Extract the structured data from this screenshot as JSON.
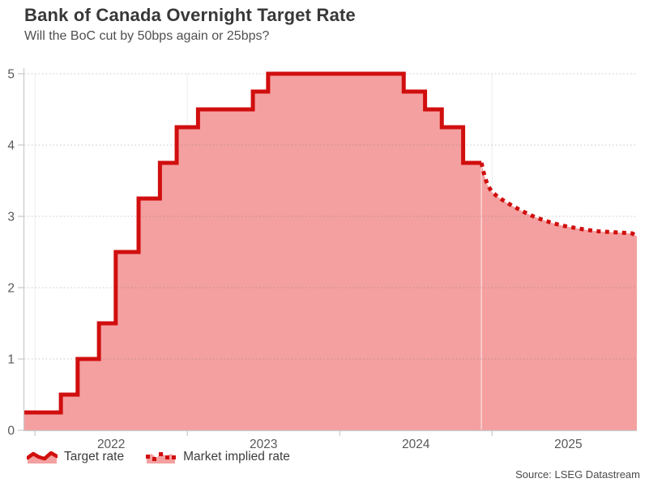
{
  "header": {
    "title": "Bank of Canada Overnight Target Rate",
    "subtitle": "Will the BoC cut by 50bps again or 25bps?"
  },
  "legend": {
    "items": [
      {
        "label": "Target rate",
        "style": "solid"
      },
      {
        "label": "Market implied rate",
        "style": "dotted"
      }
    ]
  },
  "footer": {
    "source": "Source: LSEG Datastream"
  },
  "colors": {
    "line": "#d10e0e",
    "fill": "#f4a0a0",
    "axis": "#c9c9c9",
    "grid_dot": "rgba(105,105,105,0.28)",
    "grid_vertical": "#ededed",
    "forecast_divider": "rgba(255,255,255,0.55)",
    "tick_text": "#595959"
  },
  "chart_data": {
    "type": "area",
    "title": "Bank of Canada Overnight Target Rate",
    "subtitle": "Will the BoC cut by 50bps again or 25bps?",
    "xlabel": "",
    "ylabel": "",
    "x_range": [
      2021.93,
      2025.95
    ],
    "y_range": [
      0,
      5
    ],
    "y_ticks": [
      0,
      1,
      2,
      3,
      4,
      5
    ],
    "x_tick_years": [
      2022,
      2023,
      2024,
      2025
    ],
    "x_tick_labels": [
      "2022",
      "2023",
      "2024",
      "2025"
    ],
    "grid": true,
    "legend_position": "bottom-left",
    "series": [
      {
        "name": "Target rate",
        "style": "solid-step",
        "steps": [
          [
            2021.93,
            0.25
          ],
          [
            2022.17,
            0.5
          ],
          [
            2022.28,
            1.0
          ],
          [
            2022.42,
            1.5
          ],
          [
            2022.53,
            2.5
          ],
          [
            2022.68,
            3.25
          ],
          [
            2022.82,
            3.75
          ],
          [
            2022.93,
            4.25
          ],
          [
            2023.07,
            4.5
          ],
          [
            2023.43,
            4.75
          ],
          [
            2023.53,
            5.0
          ],
          [
            2024.42,
            4.75
          ],
          [
            2024.56,
            4.5
          ],
          [
            2024.67,
            4.25
          ],
          [
            2024.81,
            3.75
          ]
        ],
        "end_x": 2024.93
      },
      {
        "name": "Market implied rate",
        "style": "dotted",
        "points": [
          [
            2024.93,
            3.75
          ],
          [
            2024.95,
            3.57
          ],
          [
            2024.97,
            3.44
          ],
          [
            2025.0,
            3.34
          ],
          [
            2025.04,
            3.27
          ],
          [
            2025.09,
            3.2
          ],
          [
            2025.14,
            3.14
          ],
          [
            2025.2,
            3.07
          ],
          [
            2025.26,
            3.01
          ],
          [
            2025.32,
            2.96
          ],
          [
            2025.39,
            2.91
          ],
          [
            2025.46,
            2.87
          ],
          [
            2025.54,
            2.84
          ],
          [
            2025.62,
            2.81
          ],
          [
            2025.7,
            2.79
          ],
          [
            2025.78,
            2.78
          ],
          [
            2025.86,
            2.77
          ],
          [
            2025.92,
            2.76
          ],
          [
            2025.95,
            2.72
          ]
        ]
      }
    ]
  }
}
